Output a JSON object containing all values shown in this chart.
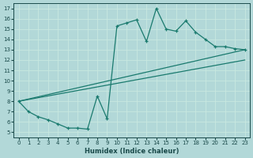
{
  "xlabel": "Humidex (Indice chaleur)",
  "background_color": "#b2d8d8",
  "grid_color": "#d4eeee",
  "line_color": "#1a7a6e",
  "xlim": [
    -0.5,
    23.5
  ],
  "ylim": [
    4.5,
    17.5
  ],
  "xticks": [
    0,
    1,
    2,
    3,
    4,
    5,
    6,
    7,
    8,
    9,
    10,
    11,
    12,
    13,
    14,
    15,
    16,
    17,
    18,
    19,
    20,
    21,
    22,
    23
  ],
  "yticks": [
    5,
    6,
    7,
    8,
    9,
    10,
    11,
    12,
    13,
    14,
    15,
    16,
    17
  ],
  "line1_x": [
    0,
    1,
    2,
    3,
    4,
    5,
    6,
    7,
    8,
    9,
    10,
    11,
    12,
    13,
    14,
    15,
    16,
    17,
    18,
    19,
    20,
    21,
    22,
    23
  ],
  "line1_y": [
    8,
    7,
    6.5,
    6.2,
    5.8,
    5.4,
    5.4,
    5.3,
    8.5,
    6.3,
    15.3,
    15.6,
    15.9,
    13.8,
    17.0,
    15.0,
    14.8,
    15.8,
    14.7,
    14.0,
    13.3,
    13.3,
    13.1,
    13.0
  ],
  "line2_x": [
    0,
    23
  ],
  "line2_y": [
    8,
    13.0
  ],
  "line3_x": [
    0,
    23
  ],
  "line3_y": [
    8,
    12.0
  ]
}
